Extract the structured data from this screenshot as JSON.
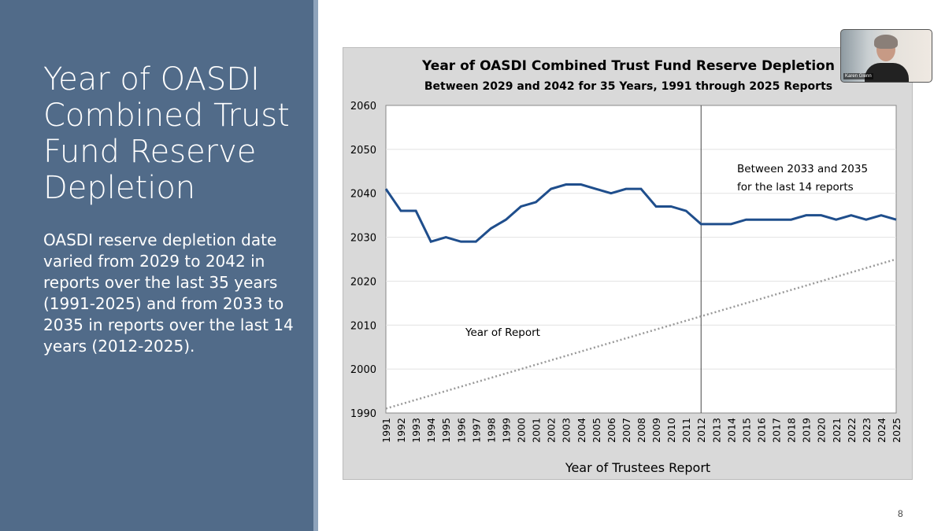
{
  "slide": {
    "title": "Year of OASDI Combined Trust Fund Reserve Depletion",
    "body": "OASDI reserve depletion date varied from 2029 to 2042 in reports over the last 35 years (1991-2025) and from 2033 to 2035 in reports over the last 14 years (2012-2025).",
    "page_number": "8"
  },
  "video": {
    "participant_name": "Karen Glenn"
  },
  "chart_data": {
    "type": "line",
    "title": "Year of OASDI Combined Trust Fund Reserve Depletion",
    "subtitle": "Between 2029 and 2042 for 35 Years, 1991 through 2025 Reports",
    "xlabel": "Year of Trustees Report",
    "ylabel": "",
    "ylim": [
      1990,
      2060
    ],
    "yticks": [
      1990,
      2000,
      2010,
      2020,
      2030,
      2040,
      2050,
      2060
    ],
    "grid": true,
    "x": [
      1991,
      1992,
      1993,
      1994,
      1995,
      1996,
      1997,
      1998,
      1999,
      2000,
      2001,
      2002,
      2003,
      2004,
      2005,
      2006,
      2007,
      2008,
      2009,
      2010,
      2011,
      2012,
      2013,
      2014,
      2015,
      2016,
      2017,
      2018,
      2019,
      2020,
      2021,
      2022,
      2023,
      2024,
      2025
    ],
    "series": [
      {
        "values": [
          2041,
          2036,
          2036,
          2029,
          2030,
          2029,
          2029,
          2032,
          2034,
          2037,
          2038,
          2041,
          2042,
          2042,
          2041,
          2040,
          2041,
          2041,
          2037,
          2037,
          2036,
          2033,
          2033,
          2033,
          2034,
          2034,
          2034,
          2034,
          2035,
          2035,
          2034,
          2035,
          2034,
          2035,
          2034
        ],
        "color": "#1f4e8c",
        "style": "solid"
      },
      {
        "name": "Year of Report",
        "values": [
          1991,
          1992,
          1993,
          1994,
          1995,
          1996,
          1997,
          1998,
          1999,
          2000,
          2001,
          2002,
          2003,
          2004,
          2005,
          2006,
          2007,
          2008,
          2009,
          2010,
          2011,
          2012,
          2013,
          2014,
          2015,
          2016,
          2017,
          2018,
          2019,
          2020,
          2021,
          2022,
          2023,
          2024,
          2025
        ],
        "color": "#999999",
        "style": "dotted"
      }
    ],
    "vertical_line_at": 2012,
    "annotations": [
      "Between 2033 and 2035",
      "for the last 14 reports",
      "Year of Report"
    ]
  }
}
